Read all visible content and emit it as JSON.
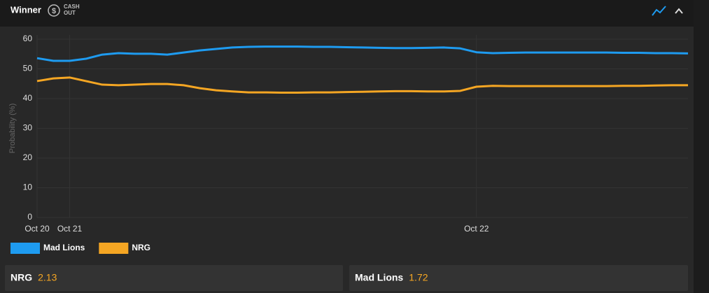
{
  "header": {
    "title": "Winner",
    "cash_out": [
      "CASH",
      "OUT"
    ]
  },
  "chart_data": {
    "type": "line",
    "y_label": "Probability (%)",
    "categories": [
      "Oct 20",
      null,
      "Oct 21",
      null,
      null,
      null,
      null,
      null,
      null,
      null,
      null,
      null,
      null,
      null,
      null,
      null,
      null,
      null,
      null,
      null,
      null,
      null,
      null,
      null,
      null,
      null,
      null,
      "Oct 22",
      null,
      null,
      null,
      null,
      null,
      null,
      null,
      null,
      null,
      null,
      null,
      null,
      null
    ],
    "series": [
      {
        "name": "Mad Lions",
        "color": "#1e9bf0",
        "values": [
          53.6,
          52.7,
          52.7,
          53.4,
          54.8,
          55.3,
          55.1,
          55.1,
          54.8,
          55.5,
          56.2,
          56.7,
          57.2,
          57.4,
          57.5,
          57.5,
          57.5,
          57.4,
          57.4,
          57.3,
          57.2,
          57.1,
          57.0,
          57.0,
          57.1,
          57.2,
          56.9,
          55.6,
          55.3,
          55.4,
          55.5,
          55.5,
          55.5,
          55.5,
          55.5,
          55.5,
          55.4,
          55.4,
          55.3,
          55.3,
          55.2
        ]
      },
      {
        "name": "NRG",
        "color": "#f5a623",
        "values": [
          45.9,
          46.8,
          47.1,
          45.9,
          44.7,
          44.5,
          44.7,
          44.9,
          44.9,
          44.5,
          43.5,
          42.8,
          42.4,
          42.1,
          42.1,
          42.0,
          42.0,
          42.1,
          42.1,
          42.2,
          42.3,
          42.4,
          42.5,
          42.5,
          42.4,
          42.4,
          42.6,
          44.0,
          44.3,
          44.2,
          44.2,
          44.2,
          44.2,
          44.2,
          44.2,
          44.2,
          44.3,
          44.3,
          44.4,
          44.5,
          44.5
        ]
      }
    ],
    "ylim": [
      0,
      60
    ],
    "yticks": [
      0,
      10,
      20,
      30,
      40,
      50,
      60
    ],
    "grid": true
  },
  "odds": [
    {
      "team": "NRG",
      "price": 2.13
    },
    {
      "team": "Mad Lions",
      "price": 1.72
    }
  ]
}
